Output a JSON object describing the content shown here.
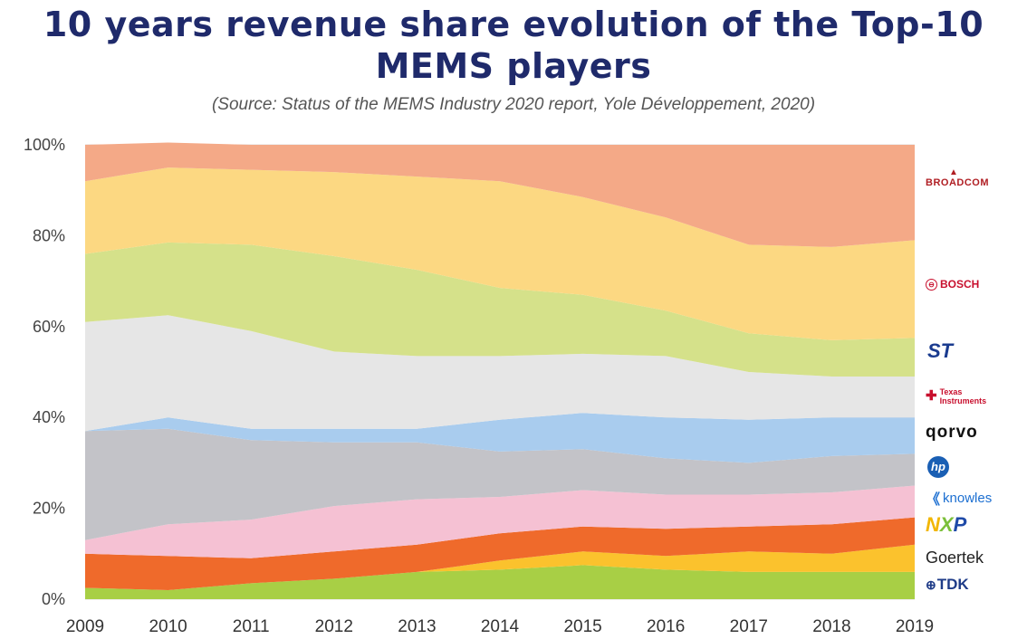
{
  "header": {
    "title_line1": "10 years revenue share evolution of the Top-10",
    "title_line2": "MEMS players",
    "subtitle": "(Source: Status of the MEMS Industry 2020 report, Yole Développement, 2020)"
  },
  "legend": {
    "broadcom": "BROADCOM",
    "bosch": "BOSCH",
    "st_mark": "ST",
    "ti": "Texas Instruments",
    "qorvo": "qorvo",
    "hp": "hp",
    "knowles": "knowles",
    "nxp_n": "N",
    "nxp_x": "X",
    "nxp_p": "P",
    "goertek": "Goertek",
    "tdk": "TDK"
  },
  "chart_data": {
    "type": "area",
    "stacked": true,
    "ylim": [
      0,
      100
    ],
    "yticks": [
      "0%",
      "20%",
      "40%",
      "60%",
      "80%",
      "100%"
    ],
    "categories": [
      "2009",
      "2010",
      "2011",
      "2012",
      "2013",
      "2014",
      "2015",
      "2016",
      "2017",
      "2018",
      "2019"
    ],
    "series": [
      {
        "name": "TDK",
        "color": "#a8cf45",
        "values": [
          2.5,
          2,
          3.5,
          4.5,
          6,
          6.5,
          7.5,
          6.5,
          6,
          6,
          6
        ]
      },
      {
        "name": "Goertek",
        "color": "#fbc22d",
        "values": [
          0,
          0,
          0,
          0,
          0,
          2,
          3,
          3,
          4.5,
          4,
          6
        ]
      },
      {
        "name": "NXP",
        "color": "#ef6a2b",
        "values": [
          7.5,
          7.5,
          5.5,
          6,
          6,
          6,
          5.5,
          6,
          5.5,
          6.5,
          6
        ]
      },
      {
        "name": "Knowles",
        "color": "#f5c1d3",
        "values": [
          3,
          7,
          8.5,
          10,
          10,
          8,
          8,
          7.5,
          7,
          7,
          7
        ]
      },
      {
        "name": "HP",
        "color": "#c3c3c8",
        "values": [
          24,
          21,
          17.5,
          14,
          12.5,
          10,
          9,
          8,
          7,
          8,
          7
        ]
      },
      {
        "name": "Qorvo",
        "color": "#a9ccee",
        "values": [
          0,
          2.5,
          2.5,
          3,
          3,
          7,
          8,
          9,
          9.5,
          8.5,
          8
        ]
      },
      {
        "name": "Texas Instruments",
        "color": "#e6e6e6",
        "values": [
          24,
          22.5,
          21.5,
          17,
          16,
          14,
          13,
          13.5,
          10.5,
          9,
          9
        ]
      },
      {
        "name": "STMicroelectronics",
        "color": "#d5e18a",
        "values": [
          15,
          16,
          19,
          21,
          19,
          15,
          13,
          10,
          8.5,
          8,
          8.5
        ]
      },
      {
        "name": "Bosch",
        "color": "#fcd882",
        "values": [
          16,
          16.5,
          16.5,
          18.5,
          20.5,
          23.5,
          21.5,
          20.5,
          19.5,
          20.5,
          21.5
        ]
      },
      {
        "name": "Broadcom",
        "color": "#f4a987",
        "values": [
          8,
          5.5,
          5.5,
          6,
          7,
          8,
          11.5,
          16,
          22,
          22.5,
          21
        ]
      }
    ]
  }
}
